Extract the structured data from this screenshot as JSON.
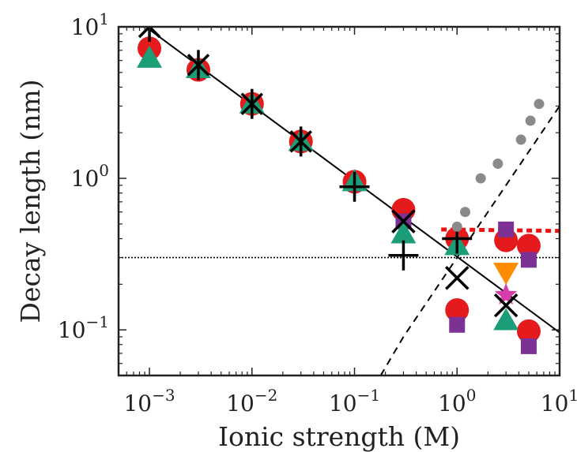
{
  "chart_data": {
    "type": "scatter",
    "x_scale": "log",
    "y_scale": "log",
    "xlabel": "Ionic strength (M)",
    "ylabel": "Decay length (nm)",
    "xlim": [
      0.0005,
      10
    ],
    "ylim": [
      0.05,
      10
    ],
    "grid": false,
    "x_ticks": [
      {
        "value": 0.001,
        "base": "10",
        "exp": "−3"
      },
      {
        "value": 0.01,
        "base": "10",
        "exp": "−2"
      },
      {
        "value": 0.1,
        "base": "10",
        "exp": "−1"
      },
      {
        "value": 1,
        "base": "10",
        "exp": "0"
      },
      {
        "value": 10,
        "base": "10",
        "exp": "1"
      }
    ],
    "y_ticks": [
      {
        "value": 0.1,
        "base": "10",
        "exp": "−1"
      },
      {
        "value": 1,
        "base": "10",
        "exp": "0"
      },
      {
        "value": 10,
        "base": "10",
        "exp": "1"
      }
    ],
    "lines": [
      {
        "style": "solid",
        "color": "#000000",
        "x": [
          0.001,
          10
        ],
        "y": [
          9.6,
          0.096
        ]
      },
      {
        "style": "dashed",
        "color": "#000000",
        "x": [
          0.18,
          0.3,
          0.5,
          1,
          2,
          4,
          10
        ],
        "y": [
          0.05,
          0.09,
          0.15,
          0.3,
          0.6,
          1.2,
          3.0
        ]
      },
      {
        "style": "dotted",
        "color": "#000000",
        "x": [
          0.0005,
          10
        ],
        "y": [
          0.3,
          0.3
        ]
      },
      {
        "style": "dotted",
        "color": "#ee1111",
        "x": [
          0.7,
          10
        ],
        "y": [
          0.46,
          0.45
        ]
      }
    ],
    "series": [
      {
        "marker": "circle",
        "color": "#e41a1c",
        "x": [
          0.001,
          0.003,
          0.01,
          0.03,
          0.1,
          0.3,
          1,
          3,
          5,
          1,
          5
        ],
        "y": [
          7.2,
          5.2,
          3.1,
          1.75,
          0.95,
          0.62,
          0.4,
          0.39,
          0.36,
          0.135,
          0.098
        ]
      },
      {
        "marker": "square",
        "color": "#7b3294",
        "x": [
          0.3,
          3,
          5,
          1,
          5
        ],
        "y": [
          0.52,
          0.46,
          0.29,
          0.108,
          0.078
        ]
      },
      {
        "marker": "triangle-down",
        "color": "#ff8c00",
        "x": [
          3
        ],
        "y": [
          0.24
        ]
      },
      {
        "marker": "star",
        "color": "#d63caa",
        "x": [
          3
        ],
        "y": [
          0.17
        ]
      },
      {
        "marker": "triangle-up",
        "color": "#1b9e77",
        "x": [
          0.001,
          0.003,
          0.01,
          0.03,
          0.1,
          0.3,
          1,
          3
        ],
        "y": [
          6.2,
          5.3,
          3.1,
          1.75,
          0.95,
          0.43,
          0.36,
          0.115
        ]
      },
      {
        "marker": "asterisk",
        "color": "#000000",
        "x": [
          0.001,
          0.003,
          0.01,
          0.03
        ],
        "y": [
          10,
          5.6,
          3.1,
          1.75
        ]
      },
      {
        "marker": "plus",
        "color": "#000000",
        "x": [
          0.1,
          0.3,
          1
        ],
        "y": [
          0.88,
          0.31,
          0.4
        ]
      },
      {
        "marker": "cross",
        "color": "#000000",
        "x": [
          0.3,
          1,
          3
        ],
        "y": [
          0.52,
          0.22,
          0.145
        ]
      },
      {
        "marker": "small-circle",
        "color": "#8a8a8a",
        "x": [
          1,
          1.2,
          1.7,
          2.5,
          4.2,
          5.2,
          6.3
        ],
        "y": [
          0.48,
          0.6,
          1.0,
          1.25,
          1.8,
          2.4,
          3.1
        ]
      }
    ]
  }
}
